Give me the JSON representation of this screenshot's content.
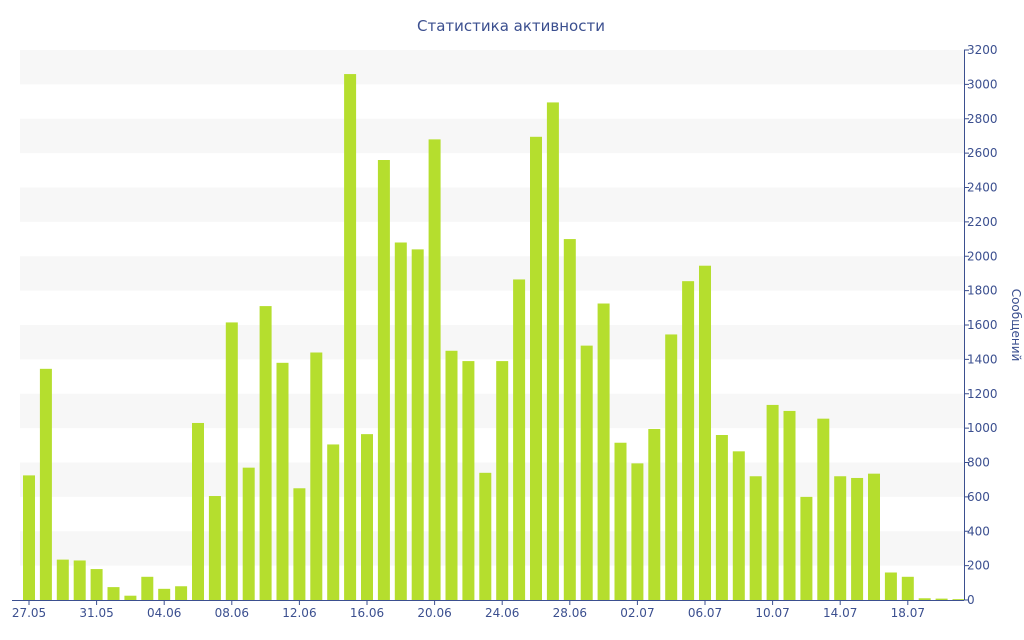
{
  "chart_data": {
    "type": "bar",
    "title": "Статистика активности",
    "xlabel": "",
    "ylabel": "Сообщений",
    "ylim": [
      0,
      3200
    ],
    "yticks": [
      0,
      200,
      400,
      600,
      800,
      1000,
      1200,
      1400,
      1600,
      1800,
      2000,
      2200,
      2400,
      2600,
      2800,
      3000,
      3200
    ],
    "y_axis_side": "right",
    "grid": "alternating horizontal bands",
    "x_tick_labels": [
      "27.05",
      "31.05",
      "04.06",
      "08.06",
      "12.06",
      "16.06",
      "20.06",
      "24.06",
      "28.06",
      "02.07",
      "06.07",
      "10.07",
      "14.07",
      "18.07"
    ],
    "x_tick_every": 4,
    "categories": [
      "27.05",
      "28.05",
      "29.05",
      "30.05",
      "31.05",
      "01.06",
      "02.06",
      "03.06",
      "04.06",
      "05.06",
      "06.06",
      "07.06",
      "08.06",
      "09.06",
      "10.06",
      "11.06",
      "12.06",
      "13.06",
      "14.06",
      "15.06",
      "16.06",
      "17.06",
      "18.06",
      "19.06",
      "20.06",
      "21.06",
      "22.06",
      "23.06",
      "24.06",
      "25.06",
      "26.06",
      "27.06",
      "28.06",
      "29.06",
      "30.06",
      "01.07",
      "02.07",
      "03.07",
      "04.07",
      "05.07",
      "06.07",
      "07.07",
      "08.07",
      "09.07",
      "10.07",
      "11.07",
      "12.07",
      "13.07",
      "14.07",
      "15.07",
      "16.07",
      "17.07",
      "18.07",
      "19.07",
      "20.07",
      "21.07"
    ],
    "values": [
      725,
      1345,
      235,
      230,
      180,
      75,
      25,
      135,
      65,
      80,
      1030,
      605,
      1615,
      770,
      1710,
      1380,
      650,
      1440,
      905,
      3060,
      965,
      2560,
      2080,
      2040,
      2680,
      1450,
      1390,
      740,
      1390,
      1865,
      2695,
      2895,
      2100,
      1480,
      1725,
      915,
      795,
      995,
      1545,
      1855,
      1945,
      960,
      865,
      720,
      1135,
      1100,
      600,
      1055,
      720,
      710,
      735,
      160,
      135,
      10,
      8,
      5
    ],
    "colors": {
      "bar": "#b5de2e",
      "band": "#f7f7f7",
      "text": "#3b4f8f",
      "axis": "#3b4f8f"
    }
  }
}
